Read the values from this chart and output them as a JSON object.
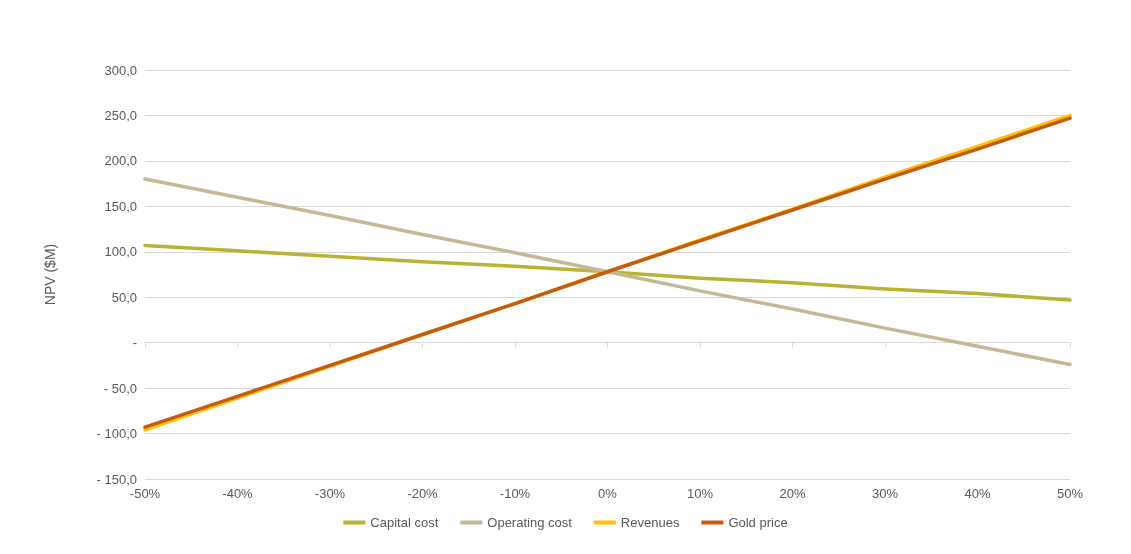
{
  "chart_data": {
    "type": "line",
    "ylabel": "NPV ($M)",
    "x": [
      -50,
      -40,
      -30,
      -20,
      -10,
      0,
      10,
      20,
      30,
      40,
      50
    ],
    "xlim": [
      -50,
      50
    ],
    "xticks": [
      {
        "value": -50,
        "label": "-50%"
      },
      {
        "value": -40,
        "label": "-40%"
      },
      {
        "value": -30,
        "label": "-30%"
      },
      {
        "value": -20,
        "label": "-20%"
      },
      {
        "value": -10,
        "label": "-10%"
      },
      {
        "value": 0,
        "label": "0%"
      },
      {
        "value": 10,
        "label": "10%"
      },
      {
        "value": 20,
        "label": "20%"
      },
      {
        "value": 30,
        "label": "30%"
      },
      {
        "value": 40,
        "label": "40%"
      },
      {
        "value": 50,
        "label": "50%"
      }
    ],
    "ylim": [
      -150,
      300
    ],
    "yticks": [
      {
        "value": -150,
        "label": "- 150,0"
      },
      {
        "value": -100,
        "label": "- 100,0"
      },
      {
        "value": -50,
        "label": "- 50,0"
      },
      {
        "value": 0,
        "label": "-"
      },
      {
        "value": 50,
        "label": "50,0"
      },
      {
        "value": 100,
        "label": "100,0"
      },
      {
        "value": 150,
        "label": "150,0"
      },
      {
        "value": 200,
        "label": "200,0"
      },
      {
        "value": 250,
        "label": "250,0"
      },
      {
        "value": 300,
        "label": "300,0"
      }
    ],
    "grid": "y",
    "legend": "bottom",
    "marker": "none",
    "line_style": "solid",
    "series": [
      {
        "name": "Capital cost",
        "color": "#b8b332",
        "values": [
          107,
          101,
          95,
          89,
          84,
          78,
          71,
          66,
          59,
          54,
          47
        ]
      },
      {
        "name": "Operating cost",
        "color": "#c4b896",
        "values": [
          180,
          160,
          140,
          119,
          99,
          78,
          57,
          37,
          16,
          -4,
          -24
        ]
      },
      {
        "name": "Revenues",
        "color": "#ffc000",
        "values": [
          -96,
          -61,
          -26,
          9,
          43,
          78,
          113,
          147,
          182,
          216,
          250
        ]
      },
      {
        "name": "Gold price",
        "color": "#c55a11",
        "values": [
          -93,
          -59,
          -25,
          9,
          43,
          78,
          112,
          146,
          180,
          213,
          247
        ]
      }
    ]
  }
}
